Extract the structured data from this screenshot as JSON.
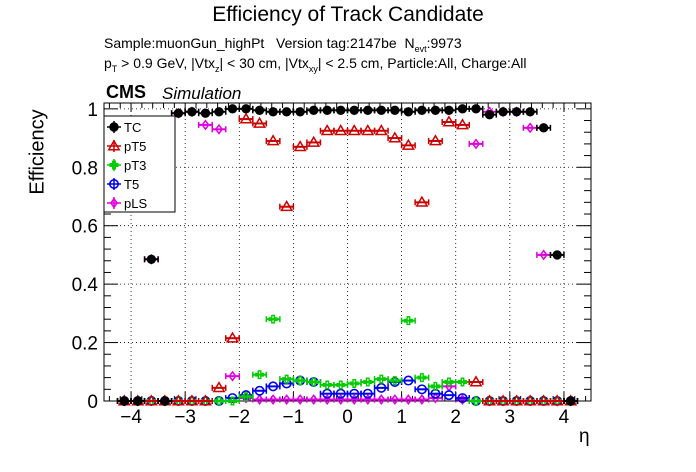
{
  "chart_data": {
    "type": "scatter",
    "title": "Efficiency of Track Candidate",
    "info_line1": {
      "sample": "Sample:muonGun_highPt",
      "version": "Version tag:2147be",
      "nevt_label": "N",
      "nevt_sub": "evt",
      "nevt_value": ":9973"
    },
    "info_line2": {
      "p": "p",
      "p_sub": "T",
      "p_rest": " > 0.9 GeV, |Vtx",
      "vtxz_sub": "z",
      "mid": "| < 30 cm, |Vtx",
      "vtxxy_sub": "xy",
      "end": "| < 2.5 cm, Particle:All, Charge:All"
    },
    "cms_label": "CMS",
    "simulation_label": "Simulation",
    "xlabel": "η",
    "ylabel": "Efficiency",
    "xlim": [
      -4.5,
      4.5
    ],
    "ylim": [
      0,
      1.02
    ],
    "xticks": [
      -4,
      -3,
      -2,
      -1,
      0,
      1,
      2,
      3,
      4
    ],
    "xtick_labels": [
      "−4",
      "−3",
      "−2",
      "−1",
      "0",
      "1",
      "2",
      "3",
      "4"
    ],
    "yticks": [
      0,
      0.2,
      0.4,
      0.6,
      0.8,
      1
    ],
    "ytick_labels": [
      "0",
      "0.2",
      "0.4",
      "0.6",
      "0.8",
      "1"
    ],
    "grid": true,
    "legend_position": "top-left",
    "x_halfwidth": 0.125,
    "x": [
      -4.375,
      -4.125,
      -3.875,
      -3.625,
      -3.375,
      -3.125,
      -2.875,
      -2.625,
      -2.375,
      -2.125,
      -1.875,
      -1.625,
      -1.375,
      -1.125,
      -0.875,
      -0.625,
      -0.375,
      -0.125,
      0.125,
      0.375,
      0.625,
      0.875,
      1.125,
      1.375,
      1.625,
      1.875,
      2.125,
      2.375,
      2.625,
      2.875,
      3.125,
      3.375,
      3.625,
      3.875,
      4.125,
      4.375
    ],
    "series": [
      {
        "name": "TC",
        "color": "#000000",
        "marker": "filled-circle",
        "values": [
          null,
          0,
          0,
          0.485,
          0,
          0.985,
          0.99,
          0.985,
          0.99,
          1.0,
          1.0,
          0.995,
          0.99,
          0.99,
          0.99,
          0.995,
          0.995,
          0.995,
          0.995,
          0.995,
          0.995,
          0.995,
          0.99,
          0.995,
          0.995,
          0.995,
          1.0,
          1.0,
          0.98,
          0.99,
          0.99,
          0.99,
          0.935,
          0.5,
          0,
          null
        ]
      },
      {
        "name": "pT5",
        "color": "#cc0000",
        "marker": "open-triangle",
        "values": [
          null,
          0,
          0,
          0,
          0,
          0,
          0,
          0,
          0.045,
          0.215,
          0.965,
          0.95,
          0.89,
          0.665,
          0.87,
          0.885,
          0.925,
          0.925,
          0.925,
          0.925,
          0.925,
          0.9,
          0.875,
          0.68,
          0.89,
          0.955,
          0.945,
          0.065,
          0,
          0,
          0,
          0,
          0,
          0,
          0,
          null
        ]
      },
      {
        "name": "pT3",
        "color": "#00cc00",
        "marker": "open-square",
        "values": [
          null,
          0,
          0,
          0,
          0,
          0,
          0,
          0,
          0,
          0,
          0.015,
          0.09,
          0.28,
          0.075,
          0.07,
          0.065,
          0.055,
          0.055,
          0.06,
          0.065,
          0.075,
          0.07,
          0.275,
          0.08,
          0.05,
          0.065,
          0.065,
          0,
          0,
          0,
          0,
          0,
          0,
          0,
          0,
          null
        ]
      },
      {
        "name": "T5",
        "color": "#0000ee",
        "marker": "open-circle",
        "values": [
          null,
          0,
          0,
          0,
          0,
          0,
          0,
          0,
          0,
          0.01,
          0.02,
          0.035,
          0.05,
          0.06,
          0.07,
          0.065,
          0.025,
          0.025,
          0.025,
          0.025,
          0.045,
          0.065,
          0.07,
          0.04,
          0.025,
          0.02,
          0.01,
          0,
          0,
          0,
          0,
          0,
          0,
          0,
          0,
          null
        ]
      },
      {
        "name": "pLS",
        "color": "#e000e0",
        "marker": "open-diamond",
        "values": [
          null,
          0,
          0,
          0.485,
          0,
          0.985,
          0.99,
          0.945,
          0.93,
          0.085,
          0.01,
          0.005,
          0.005,
          0.005,
          0.005,
          0.005,
          0.005,
          0.005,
          0.005,
          0.005,
          0.005,
          0.005,
          0.005,
          0.005,
          0.01,
          0.05,
          0.005,
          0.88,
          0.99,
          0.99,
          0.99,
          0.935,
          0.5,
          0,
          0,
          null
        ]
      }
    ]
  }
}
